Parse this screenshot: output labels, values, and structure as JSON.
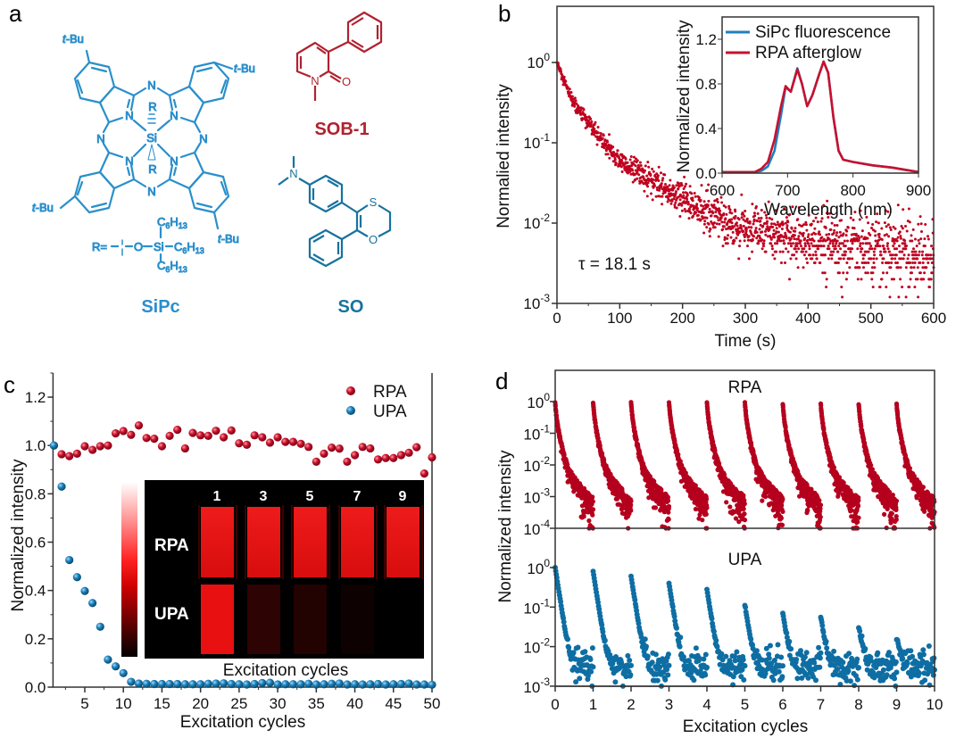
{
  "panel_labels": {
    "a": "a",
    "b": "b",
    "c": "c",
    "d": "d"
  },
  "colors": {
    "sipc": "#2a8fcb",
    "sob1": "#b0222f",
    "so": "#17729f",
    "rpa": "#b5001e",
    "upa": "#0e6ea3",
    "sipc_line": "#1f7fc0"
  },
  "structures": {
    "sipc": {
      "name": "SiPc",
      "t_bu_t": "t",
      "t_bu_rest": "-Bu",
      "n": "N",
      "si": "Si",
      "r": "R",
      "r_eq": "R=",
      "o": "O",
      "c6h13": [
        "C",
        "6",
        "H",
        "13"
      ]
    },
    "sob1": {
      "name": "SOB-1",
      "n": "N",
      "o": "O"
    },
    "so": {
      "name": "SO",
      "n": "N",
      "s": "S",
      "o": "O"
    }
  },
  "chart_data": [
    {
      "panel": "b",
      "type": "scatter",
      "xlabel": "Time (s)",
      "ylabel": "Normalied intensity",
      "xlim": [
        0,
        600
      ],
      "ylim": [
        0.001,
        5
      ],
      "yscale": "log",
      "xticks": [
        0,
        100,
        200,
        300,
        400,
        500,
        600
      ],
      "yticks_exponents": [
        0,
        -1,
        -2,
        -3
      ],
      "annotation": "τ = 18.1 s",
      "series": [
        {
          "color": "#c0001f",
          "decay_curve": {
            "time": [
              0,
              10,
              25,
              50,
              75,
              100,
              150,
              200,
              250,
              300,
              400,
              500,
              600
            ],
            "intensity": [
              1.0,
              0.6,
              0.33,
              0.17,
              0.1,
              0.06,
              0.033,
              0.02,
              0.012,
              0.0085,
              0.006,
              0.0045,
              0.004
            ]
          }
        }
      ]
    },
    {
      "panel": "b-inset",
      "type": "line",
      "xlabel": "Wavelength (nm)",
      "ylabel": "Normalized intensity",
      "xlim": [
        600,
        900
      ],
      "ylim": [
        0,
        1.4
      ],
      "xticks": [
        600,
        700,
        800,
        900
      ],
      "yticks": [
        "0.0",
        "0.4",
        "0.8",
        "1.2"
      ],
      "legend": "top-left",
      "series": [
        {
          "name": "SiPc fluorescence",
          "color": "#1f7fc0",
          "x": [
            600,
            650,
            660,
            670,
            680,
            690,
            697,
            705,
            715,
            722,
            730,
            738,
            748,
            755,
            762,
            770,
            778,
            785,
            800,
            830,
            860,
            880,
            900
          ],
          "y": [
            0.01,
            0.01,
            0.02,
            0.06,
            0.2,
            0.52,
            0.77,
            0.73,
            0.94,
            0.8,
            0.6,
            0.7,
            0.88,
            1.0,
            0.9,
            0.5,
            0.2,
            0.12,
            0.1,
            0.07,
            0.05,
            0.03,
            0.01
          ]
        },
        {
          "name": "RPA afterglow",
          "color": "#c8102e",
          "x": [
            600,
            650,
            660,
            670,
            680,
            690,
            697,
            705,
            715,
            722,
            730,
            738,
            748,
            755,
            762,
            770,
            778,
            785,
            800,
            830,
            860,
            880,
            900
          ],
          "y": [
            0.01,
            0.01,
            0.04,
            0.1,
            0.3,
            0.6,
            0.78,
            0.73,
            0.93,
            0.8,
            0.6,
            0.7,
            0.88,
            1.0,
            0.9,
            0.5,
            0.2,
            0.12,
            0.1,
            0.07,
            0.05,
            0.03,
            0.01
          ]
        }
      ]
    },
    {
      "panel": "c",
      "type": "scatter",
      "xlabel": "Excitation cycles",
      "ylabel": "Normalized intensity",
      "xlim": [
        1,
        50
      ],
      "ylim": [
        0,
        1.3
      ],
      "xticks": [
        5,
        10,
        15,
        20,
        25,
        30,
        35,
        40,
        45,
        50
      ],
      "yticks": [
        "0.0",
        "0.2",
        "0.4",
        "0.6",
        "0.8",
        "1.0",
        "1.2"
      ],
      "legend": "top-right",
      "series": [
        {
          "name": "RPA",
          "color": "#b5001e",
          "x": [
            1,
            2,
            3,
            4,
            5,
            6,
            7,
            8,
            9,
            10,
            11,
            12,
            13,
            14,
            15,
            16,
            17,
            18,
            19,
            20,
            21,
            22,
            23,
            24,
            25,
            26,
            27,
            28,
            29,
            30,
            31,
            32,
            33,
            34,
            35,
            36,
            37,
            38,
            39,
            40,
            41,
            42,
            43,
            44,
            45,
            46,
            47,
            48,
            49,
            50
          ],
          "y": [
            1.0,
            0.964,
            0.956,
            0.966,
            0.997,
            0.982,
            0.997,
            1.0,
            1.05,
            1.06,
            1.044,
            1.083,
            1.031,
            1.028,
            0.997,
            1.04,
            1.065,
            0.988,
            1.052,
            1.042,
            1.04,
            1.061,
            1.034,
            1.062,
            1.009,
            1.003,
            1.042,
            1.034,
            1.012,
            1.034,
            1.015,
            1.015,
            1.007,
            0.994,
            0.933,
            0.966,
            0.991,
            0.987,
            0.933,
            0.96,
            0.994,
            0.988,
            0.942,
            0.948,
            0.948,
            0.96,
            0.97,
            0.993,
            0.884,
            0.951
          ]
        },
        {
          "name": "UPA",
          "color": "#0e6ea3",
          "x": [
            1,
            2,
            3,
            4,
            5,
            6,
            7,
            8,
            9,
            10,
            11,
            12,
            13,
            14,
            15,
            16,
            17,
            18,
            19,
            20,
            21,
            22,
            23,
            24,
            25,
            26,
            27,
            28,
            29,
            30,
            31,
            32,
            33,
            34,
            35,
            36,
            37,
            38,
            39,
            40,
            41,
            42,
            43,
            44,
            45,
            46,
            47,
            48,
            49,
            50
          ],
          "y": [
            1.0,
            0.83,
            0.526,
            0.455,
            0.398,
            0.348,
            0.25,
            0.114,
            0.086,
            0.058,
            0.022,
            0.015,
            0.014,
            0.013,
            0.013,
            0.013,
            0.013,
            0.012,
            0.012,
            0.012,
            0.014,
            0.015,
            0.016,
            0.013,
            0.012,
            0.011,
            0.013,
            0.017,
            0.018,
            0.011,
            0.012,
            0.012,
            0.012,
            0.014,
            0.011,
            0.012,
            0.014,
            0.015,
            0.011,
            0.012,
            0.011,
            0.012,
            0.013,
            0.011,
            0.012,
            0.013,
            0.015,
            0.011,
            0.011,
            0.01
          ]
        }
      ],
      "inset": {
        "columns": [
          "1",
          "3",
          "5",
          "7",
          "9"
        ],
        "rows": [
          "RPA",
          "UPA"
        ],
        "caption": "Excitation cycles",
        "rpa_brightness": [
          1,
          1,
          1,
          1,
          1
        ],
        "upa_brightness": [
          1,
          0.2,
          0.15,
          0.06,
          0
        ]
      }
    },
    {
      "panel": "d",
      "type": "scatter",
      "xlabel": "Excitation cycles",
      "ylabel": "Normalized intensity",
      "xlim": [
        0,
        10
      ],
      "xticks": [
        0,
        1,
        2,
        3,
        4,
        5,
        6,
        7,
        8,
        9,
        10
      ],
      "subplots": [
        {
          "title": "RPA",
          "color": "#b5001e",
          "ylim": [
            0.0001,
            10
          ],
          "yscale": "log",
          "yticks_exponents": [
            0,
            -1,
            -2,
            -3,
            -4
          ],
          "cycle_start": [
            0,
            1,
            2,
            3,
            4,
            5,
            6,
            7,
            8,
            9
          ],
          "peak": [
            1,
            1,
            1,
            1,
            1,
            1,
            0.9,
            0.9,
            0.9,
            0.9
          ],
          "baseline": 0.0003
        },
        {
          "title": "UPA",
          "color": "#0e6ea3",
          "ylim": [
            0.001,
            10
          ],
          "yscale": "log",
          "yticks_exponents": [
            0,
            -1,
            -2,
            -3
          ],
          "cycle_start": [
            0,
            1,
            2,
            3,
            4,
            5,
            6,
            7,
            8,
            9
          ],
          "peak": [
            1,
            0.8,
            0.6,
            0.4,
            0.28,
            0.11,
            0.07,
            0.055,
            0.03,
            0.015
          ],
          "baseline": 0.003
        }
      ]
    }
  ]
}
